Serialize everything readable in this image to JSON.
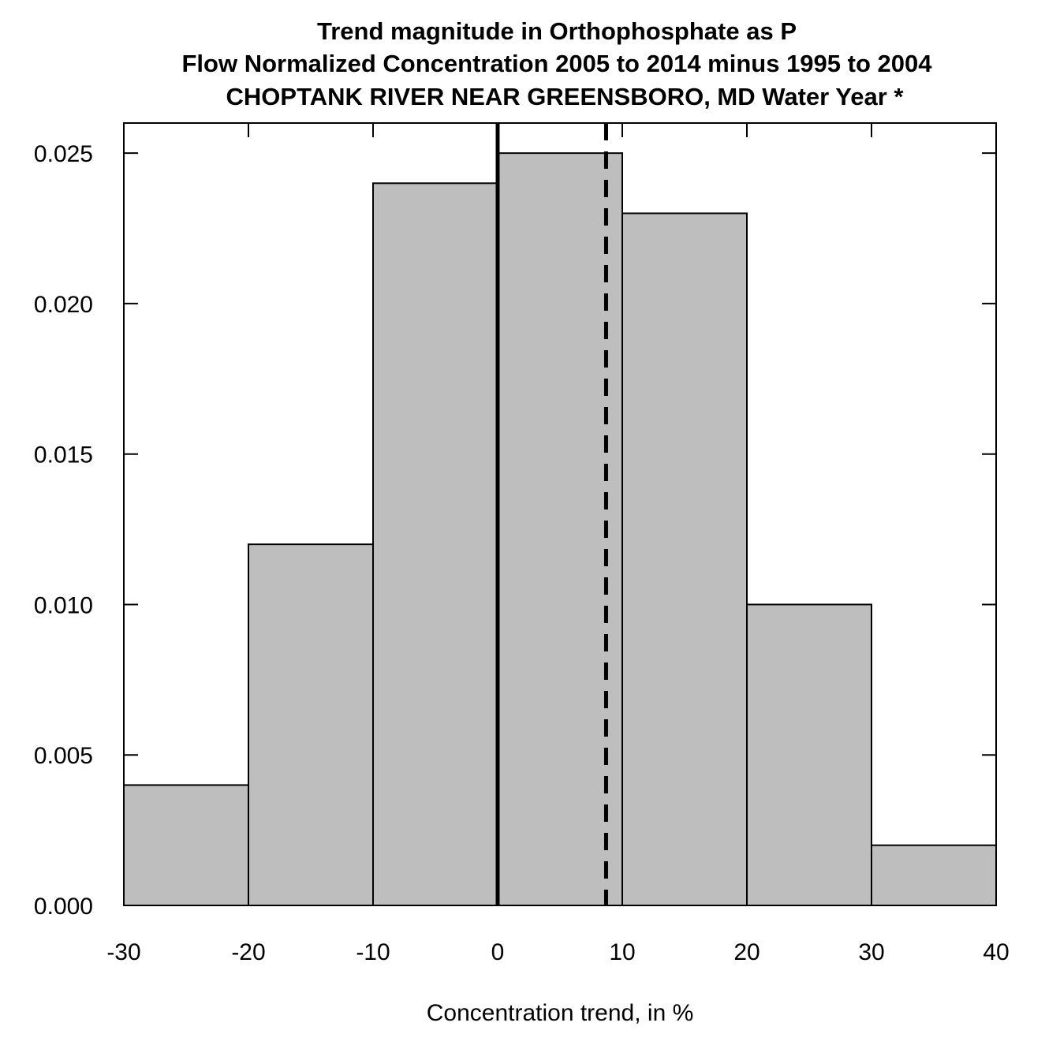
{
  "chart_data": {
    "type": "bar",
    "title_lines": [
      "Trend magnitude in Orthophosphate as P",
      "Flow Normalized Concentration 2005 to 2014 minus 1995 to 2004",
      "CHOPTANK RIVER NEAR GREENSBORO, MD Water Year *"
    ],
    "xlabel": "Concentration trend, in %",
    "ylabel": "",
    "xlim": [
      -30,
      40
    ],
    "ylim": [
      0,
      0.026
    ],
    "x_ticks": [
      -30,
      -20,
      -10,
      0,
      10,
      20,
      30,
      40
    ],
    "x_tick_labels": [
      "-30",
      "-20",
      "-10",
      "0",
      "10",
      "20",
      "30",
      "40"
    ],
    "y_ticks": [
      0,
      0.005,
      0.01,
      0.015,
      0.02,
      0.025
    ],
    "y_tick_labels": [
      "0.000",
      "0.005",
      "0.010",
      "0.015",
      "0.020",
      "0.025"
    ],
    "bins": [
      {
        "from": -30,
        "to": -20,
        "density": 0.004
      },
      {
        "from": -20,
        "to": -10,
        "density": 0.012
      },
      {
        "from": -10,
        "to": 0,
        "density": 0.024
      },
      {
        "from": 0,
        "to": 10,
        "density": 0.025
      },
      {
        "from": 10,
        "to": 20,
        "density": 0.023
      },
      {
        "from": 20,
        "to": 30,
        "density": 0.01
      },
      {
        "from": 30,
        "to": 40,
        "density": 0.002
      }
    ],
    "reference_lines": [
      {
        "name": "zero",
        "x": 0,
        "style": "solid"
      },
      {
        "name": "estimate",
        "x": 8.7,
        "style": "dashed"
      }
    ],
    "bar_fill": "#bebebe",
    "bar_stroke": "#000000",
    "grid": false,
    "legend": "none"
  }
}
